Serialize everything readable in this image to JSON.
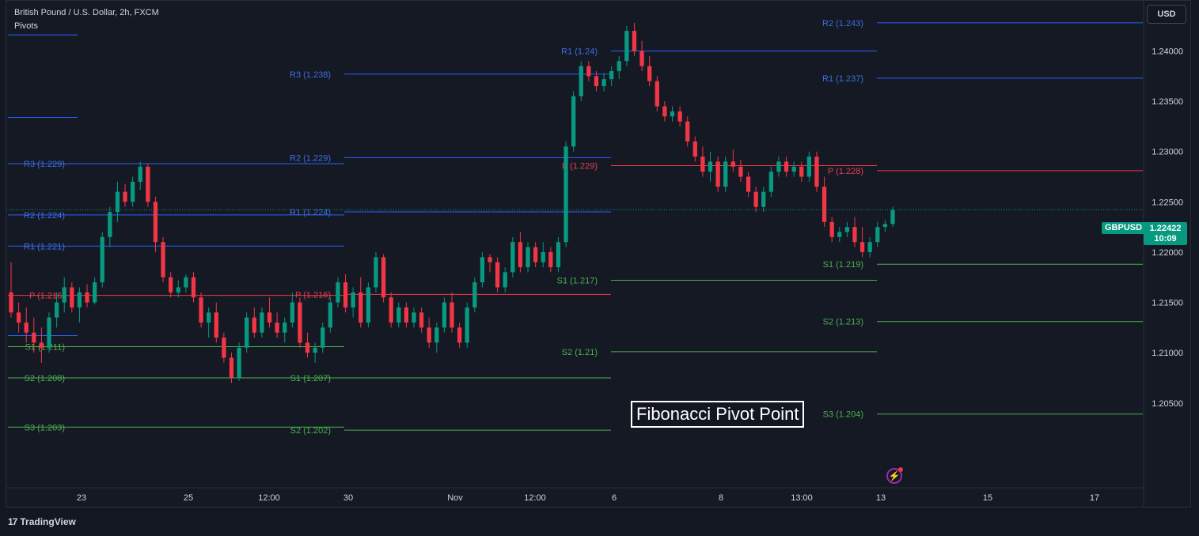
{
  "header": {
    "title": "British Pound / U.S. Dollar, 2h, FXCM",
    "indicator": "Pivots"
  },
  "toolbar": {
    "currency": "USD"
  },
  "price_tag": {
    "symbol": "GBPUSD",
    "price": "1.22422",
    "countdown": "10:09"
  },
  "overlay_label": "Fibonacci Pivot Point",
  "footer": {
    "brand": "TradingView",
    "brand_logo": "17"
  },
  "colors": {
    "background": "#131722",
    "up": "#089981",
    "down": "#f23645",
    "resistance": "#2962ff",
    "pivot": "#f23645",
    "support": "#4caf50"
  },
  "chart_data": {
    "type": "candlestick",
    "y_axis": {
      "min": 1.2005,
      "max": 1.2435,
      "ticks": [
        "1.24000",
        "1.23500",
        "1.23000",
        "1.22500",
        "1.22000",
        "1.21500",
        "1.21000",
        "1.20500"
      ]
    },
    "x_axis": {
      "ticks": [
        "23",
        "25",
        "12:00",
        "30",
        "Nov",
        "12:00",
        "6",
        "8",
        "13:00",
        "13",
        "15",
        "17"
      ]
    },
    "pivot_periods": [
      {
        "levels": [
          {
            "name": "R3",
            "label": "R3 (1.229)",
            "value": 1.2288,
            "kind": "resistance",
            "label_shown": true
          },
          {
            "name": "R2",
            "label": "R2 (1.224)",
            "value": 1.2237,
            "kind": "resistance",
            "label_shown": true
          },
          {
            "name": "R1",
            "label": "R1 (1.221)",
            "value": 1.2206,
            "kind": "resistance",
            "label_shown": true
          },
          {
            "name": "P",
            "label": "P (1.216)",
            "value": 1.2157,
            "kind": "pivot",
            "label_shown": true
          },
          {
            "name": "S1",
            "label": "S1 (1.211)",
            "value": 1.2106,
            "kind": "support",
            "label_shown": true
          },
          {
            "name": "S2",
            "label": "S2 (1.208)",
            "value": 1.2075,
            "kind": "support",
            "label_shown": true
          },
          {
            "name": "S3",
            "label": "S3 (1.203)",
            "value": 1.2026,
            "kind": "support",
            "label_shown": true
          }
        ]
      },
      {
        "levels": [
          {
            "name": "R3",
            "label": "R3 (1.238)",
            "value": 1.2377,
            "kind": "resistance",
            "label_shown": true
          },
          {
            "name": "R2",
            "label": "R2 (1.229)",
            "value": 1.2294,
            "kind": "resistance",
            "label_shown": true
          },
          {
            "name": "R1",
            "label": "R1 (1.224)",
            "value": 1.224,
            "kind": "resistance",
            "label_shown": true
          },
          {
            "name": "P",
            "label": "P (1.216)",
            "value": 1.2158,
            "kind": "pivot",
            "label_shown": true
          },
          {
            "name": "S1",
            "label": "S1 (1.207)",
            "value": 1.2075,
            "kind": "support",
            "label_shown": true
          },
          {
            "name": "S2",
            "label": "S2 (1.202)",
            "value": 1.2023,
            "kind": "support",
            "label_shown": true
          }
        ]
      },
      {
        "levels": [
          {
            "name": "R1",
            "label": "R1 (1.24)",
            "value": 1.24,
            "kind": "resistance",
            "label_shown": true
          },
          {
            "name": "P",
            "label": "P (1.229)",
            "value": 1.2286,
            "kind": "pivot",
            "label_shown": true
          },
          {
            "name": "S1",
            "label": "S1 (1.217)",
            "value": 1.2172,
            "kind": "support",
            "label_shown": true
          },
          {
            "name": "S2",
            "label": "S2 (1.21)",
            "value": 1.2101,
            "kind": "support",
            "label_shown": true
          }
        ]
      },
      {
        "levels": [
          {
            "name": "R2",
            "label": "R2 (1.243)",
            "value": 1.2428,
            "kind": "resistance",
            "label_shown": true
          },
          {
            "name": "R1",
            "label": "R1 (1.237)",
            "value": 1.2373,
            "kind": "resistance",
            "label_shown": true
          },
          {
            "name": "P",
            "label": "P (1.228)",
            "value": 1.2281,
            "kind": "pivot",
            "label_shown": true
          },
          {
            "name": "S1",
            "label": "S1 (1.219)",
            "value": 1.2188,
            "kind": "support",
            "label_shown": true
          },
          {
            "name": "S2",
            "label": "S2 (1.213)",
            "value": 1.2131,
            "kind": "support",
            "label_shown": true
          },
          {
            "name": "S3",
            "label": "S3 (1.204)",
            "value": 1.2039,
            "kind": "support",
            "label_shown": true
          }
        ]
      }
    ],
    "prior_period_levels": [
      1.2416,
      1.2334,
      1.2117
    ],
    "current_price": 1.22422,
    "candles": [
      [
        1.216,
        1.219,
        1.2135,
        1.214
      ],
      [
        1.214,
        1.215,
        1.212,
        1.213
      ],
      [
        1.213,
        1.2145,
        1.211,
        1.212
      ],
      [
        1.212,
        1.2135,
        1.21,
        1.211
      ],
      [
        1.211,
        1.2125,
        1.209,
        1.2105
      ],
      [
        1.2105,
        1.214,
        1.21,
        1.2135
      ],
      [
        1.2135,
        1.216,
        1.2125,
        1.215
      ],
      [
        1.215,
        1.2175,
        1.214,
        1.2165
      ],
      [
        1.2165,
        1.217,
        1.214,
        1.2145
      ],
      [
        1.2145,
        1.2165,
        1.213,
        1.216
      ],
      [
        1.216,
        1.2168,
        1.2145,
        1.215
      ],
      [
        1.215,
        1.2175,
        1.2148,
        1.217
      ],
      [
        1.217,
        1.222,
        1.2165,
        1.2215
      ],
      [
        1.2215,
        1.2245,
        1.2205,
        1.224
      ],
      [
        1.224,
        1.227,
        1.223,
        1.226
      ],
      [
        1.226,
        1.2268,
        1.2245,
        1.225
      ],
      [
        1.225,
        1.2275,
        1.2245,
        1.227
      ],
      [
        1.227,
        1.229,
        1.2262,
        1.2285
      ],
      [
        1.2285,
        1.2288,
        1.2245,
        1.225
      ],
      [
        1.225,
        1.2255,
        1.22,
        1.221
      ],
      [
        1.221,
        1.2215,
        1.217,
        1.2175
      ],
      [
        1.2175,
        1.218,
        1.2155,
        1.216
      ],
      [
        1.216,
        1.2172,
        1.2155,
        1.2165
      ],
      [
        1.2165,
        1.2178,
        1.216,
        1.2175
      ],
      [
        1.2175,
        1.218,
        1.215,
        1.2155
      ],
      [
        1.2155,
        1.216,
        1.2125,
        1.213
      ],
      [
        1.213,
        1.2145,
        1.2115,
        1.214
      ],
      [
        1.214,
        1.215,
        1.211,
        1.2115
      ],
      [
        1.2115,
        1.212,
        1.209,
        1.2095
      ],
      [
        1.2095,
        1.21,
        1.207,
        1.2075
      ],
      [
        1.2075,
        1.211,
        1.2072,
        1.2105
      ],
      [
        1.2105,
        1.214,
        1.21,
        1.2135
      ],
      [
        1.2135,
        1.2145,
        1.2115,
        1.212
      ],
      [
        1.212,
        1.2145,
        1.2115,
        1.214
      ],
      [
        1.214,
        1.2155,
        1.2125,
        1.213
      ],
      [
        1.213,
        1.214,
        1.2115,
        1.212
      ],
      [
        1.212,
        1.2135,
        1.211,
        1.213
      ],
      [
        1.213,
        1.216,
        1.2125,
        1.215
      ],
      [
        1.215,
        1.2155,
        1.2105,
        1.211
      ],
      [
        1.211,
        1.212,
        1.2095,
        1.21
      ],
      [
        1.21,
        1.211,
        1.209,
        1.2105
      ],
      [
        1.2105,
        1.213,
        1.21,
        1.2125
      ],
      [
        1.2125,
        1.2155,
        1.212,
        1.215
      ],
      [
        1.215,
        1.2175,
        1.2145,
        1.217
      ],
      [
        1.217,
        1.2178,
        1.214,
        1.2145
      ],
      [
        1.2145,
        1.2165,
        1.2135,
        1.216
      ],
      [
        1.216,
        1.2175,
        1.2125,
        1.213
      ],
      [
        1.213,
        1.217,
        1.2125,
        1.2165
      ],
      [
        1.2165,
        1.22,
        1.216,
        1.2195
      ],
      [
        1.2195,
        1.2198,
        1.215,
        1.2155
      ],
      [
        1.2155,
        1.216,
        1.2125,
        1.213
      ],
      [
        1.213,
        1.215,
        1.2125,
        1.2145
      ],
      [
        1.2145,
        1.215,
        1.2125,
        1.213
      ],
      [
        1.213,
        1.2145,
        1.2125,
        1.214
      ],
      [
        1.214,
        1.2145,
        1.212,
        1.2125
      ],
      [
        1.2125,
        1.2135,
        1.2105,
        1.211
      ],
      [
        1.211,
        1.213,
        1.21,
        1.2125
      ],
      [
        1.2125,
        1.2155,
        1.212,
        1.215
      ],
      [
        1.215,
        1.216,
        1.212,
        1.2125
      ],
      [
        1.2125,
        1.213,
        1.2105,
        1.211
      ],
      [
        1.211,
        1.215,
        1.2105,
        1.2145
      ],
      [
        1.2145,
        1.2175,
        1.214,
        1.217
      ],
      [
        1.217,
        1.22,
        1.2165,
        1.2195
      ],
      [
        1.2195,
        1.2198,
        1.218,
        1.219
      ],
      [
        1.219,
        1.2195,
        1.216,
        1.2165
      ],
      [
        1.2165,
        1.2185,
        1.216,
        1.218
      ],
      [
        1.218,
        1.2215,
        1.2175,
        1.221
      ],
      [
        1.221,
        1.222,
        1.218,
        1.2185
      ],
      [
        1.2185,
        1.221,
        1.218,
        1.2205
      ],
      [
        1.2205,
        1.221,
        1.2185,
        1.219
      ],
      [
        1.219,
        1.221,
        1.2185,
        1.22
      ],
      [
        1.22,
        1.2205,
        1.218,
        1.2185
      ],
      [
        1.2185,
        1.2215,
        1.218,
        1.221
      ],
      [
        1.221,
        1.231,
        1.2205,
        1.2305
      ],
      [
        1.2305,
        1.236,
        1.23,
        1.2355
      ],
      [
        1.2355,
        1.239,
        1.235,
        1.2385
      ],
      [
        1.2385,
        1.239,
        1.237,
        1.2375
      ],
      [
        1.2375,
        1.238,
        1.236,
        1.2365
      ],
      [
        1.2365,
        1.2378,
        1.236,
        1.2372
      ],
      [
        1.2372,
        1.2385,
        1.2365,
        1.238
      ],
      [
        1.238,
        1.2395,
        1.2372,
        1.239
      ],
      [
        1.239,
        1.2425,
        1.2385,
        1.242
      ],
      [
        1.242,
        1.2428,
        1.2395,
        1.24
      ],
      [
        1.24,
        1.241,
        1.238,
        1.2385
      ],
      [
        1.2385,
        1.2395,
        1.2365,
        1.237
      ],
      [
        1.237,
        1.2375,
        1.234,
        1.2345
      ],
      [
        1.2345,
        1.235,
        1.233,
        1.2335
      ],
      [
        1.2335,
        1.2345,
        1.233,
        1.234
      ],
      [
        1.234,
        1.2345,
        1.2325,
        1.233
      ],
      [
        1.233,
        1.2335,
        1.2305,
        1.231
      ],
      [
        1.231,
        1.2315,
        1.229,
        1.2295
      ],
      [
        1.2295,
        1.2305,
        1.2275,
        1.228
      ],
      [
        1.228,
        1.23,
        1.227,
        1.229
      ],
      [
        1.229,
        1.2295,
        1.226,
        1.2265
      ],
      [
        1.2265,
        1.2295,
        1.226,
        1.229
      ],
      [
        1.229,
        1.2302,
        1.228,
        1.2285
      ],
      [
        1.2285,
        1.2292,
        1.227,
        1.2275
      ],
      [
        1.2275,
        1.228,
        1.2255,
        1.226
      ],
      [
        1.226,
        1.2265,
        1.224,
        1.2245
      ],
      [
        1.2245,
        1.2265,
        1.224,
        1.226
      ],
      [
        1.226,
        1.2285,
        1.2255,
        1.228
      ],
      [
        1.228,
        1.2295,
        1.2275,
        1.229
      ],
      [
        1.229,
        1.2295,
        1.2275,
        1.228
      ],
      [
        1.228,
        1.229,
        1.2275,
        1.2285
      ],
      [
        1.2285,
        1.229,
        1.227,
        1.2275
      ],
      [
        1.2275,
        1.23,
        1.227,
        1.2295
      ],
      [
        1.2295,
        1.23,
        1.226,
        1.2265
      ],
      [
        1.2265,
        1.2275,
        1.2225,
        1.223
      ],
      [
        1.223,
        1.2235,
        1.221,
        1.2215
      ],
      [
        1.2215,
        1.2225,
        1.221,
        1.222
      ],
      [
        1.222,
        1.223,
        1.2215,
        1.2225
      ],
      [
        1.2225,
        1.2235,
        1.2205,
        1.221
      ],
      [
        1.221,
        1.2225,
        1.2195,
        1.22
      ],
      [
        1.22,
        1.2215,
        1.2195,
        1.221
      ],
      [
        1.221,
        1.223,
        1.2205,
        1.2225
      ],
      [
        1.2225,
        1.2232,
        1.222,
        1.2228
      ],
      [
        1.2228,
        1.2245,
        1.2225,
        1.2242
      ]
    ]
  }
}
